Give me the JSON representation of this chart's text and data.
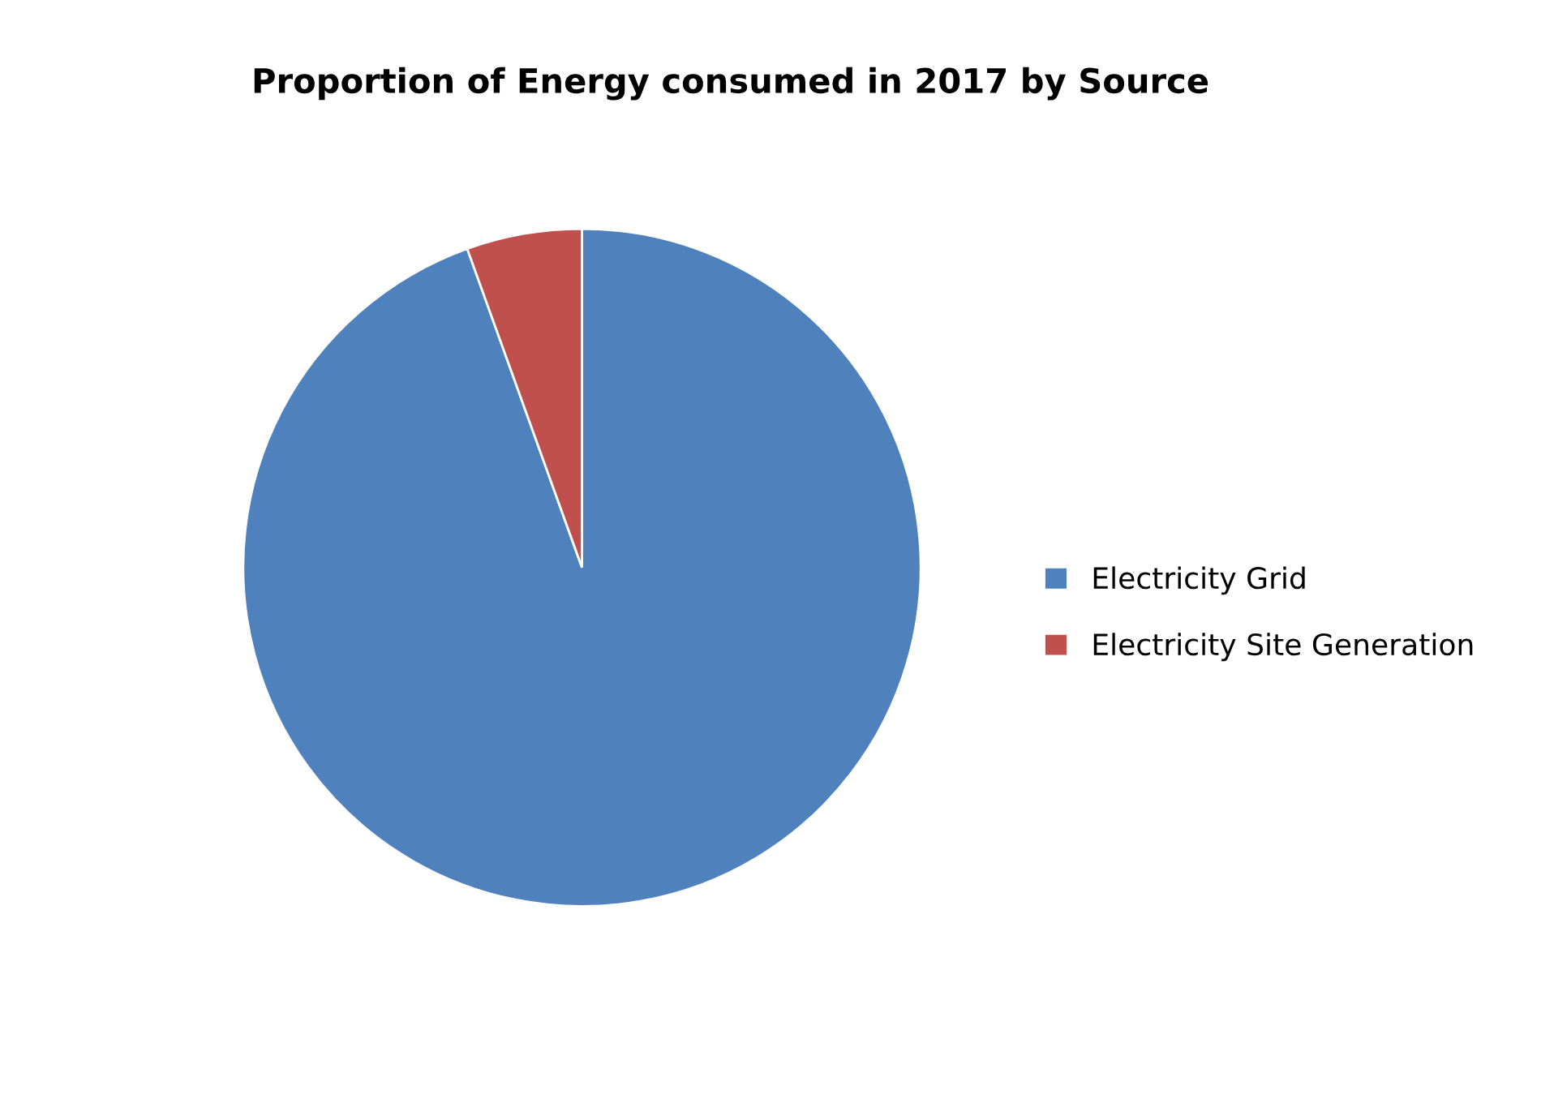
{
  "chart_data": {
    "type": "pie",
    "title": "Proportion of Energy consumed in 2017 by Source",
    "categories": [
      "Electricity Grid",
      "Electricity Site Generation"
    ],
    "values": [
      94.5,
      5.5
    ],
    "colors": [
      "#4f81bd",
      "#c0504d"
    ],
    "legend": "right"
  }
}
